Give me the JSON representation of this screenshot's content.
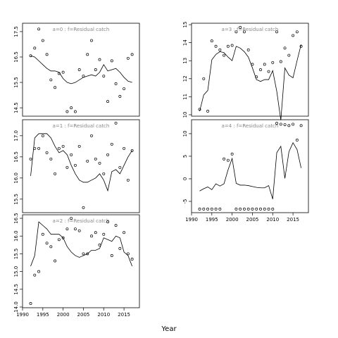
{
  "xlabel": "Year",
  "chart_data": [
    {
      "type": "scatter",
      "title": "a=0 : f=Residual catch",
      "x": [
        1992,
        1993,
        1994,
        1995,
        1996,
        1997,
        1998,
        1999,
        2000,
        2001,
        2002,
        2003,
        2004,
        2005,
        2006,
        2007,
        2008,
        2009,
        2010,
        2011,
        2012,
        2013,
        2014,
        2015,
        2016,
        2017
      ],
      "xlim": [
        1990,
        2018.8
      ],
      "ylim": [
        14.17,
        17.83
      ],
      "yticks": [
        14.5,
        15.5,
        16.5,
        17.5
      ],
      "series": [
        {
          "style": "points",
          "color": "#000000",
          "values": [
            16.55,
            16.85,
            17.6,
            17.15,
            16.6,
            15.6,
            15.3,
            15.85,
            15.9,
            14.35,
            14.5,
            14.35,
            16.0,
            15.75,
            16.6,
            17.15,
            16.0,
            16.4,
            15.75,
            14.75,
            16.35,
            15.45,
            14.95,
            15.25,
            16.45,
            16.6
          ]
        },
        {
          "style": "line",
          "color": "#000000",
          "values": [
            16.55,
            16.5,
            16.35,
            16.2,
            16.05,
            15.95,
            15.95,
            15.9,
            15.65,
            15.5,
            15.45,
            15.5,
            15.6,
            15.7,
            15.75,
            15.8,
            15.75,
            15.9,
            16.2,
            15.95,
            16.0,
            16.05,
            15.9,
            15.7,
            15.55,
            15.5
          ]
        }
      ]
    },
    {
      "type": "scatter",
      "title": "a=1 : f=Residual catch",
      "x": [
        1992,
        1993,
        1994,
        1995,
        1996,
        1997,
        1998,
        1999,
        2000,
        2001,
        2002,
        2003,
        2004,
        2005,
        2006,
        2007,
        2008,
        2009,
        2010,
        2011,
        2012,
        2013,
        2014,
        2015,
        2016,
        2017
      ],
      "xlim": [
        1990,
        2018.8
      ],
      "ylim": [
        15.18,
        17.38
      ],
      "yticks": [
        {
          "value": 15.5,
          "label": "15.5"
        },
        {
          "value": 16,
          "label": "16.0"
        },
        {
          "value": 16.5,
          "label": "16.5"
        },
        {
          "value": 17,
          "label": "17.0"
        }
      ],
      "series": [
        {
          "style": "points",
          "color": "#000000",
          "values": [
            16.45,
            16.7,
            16.7,
            17.0,
            16.6,
            16.45,
            16.1,
            16.7,
            16.75,
            16.25,
            16.55,
            16.3,
            16.75,
            15.3,
            16.4,
            17.0,
            16.45,
            16.35,
            16.1,
            16.55,
            16.8,
            17.3,
            16.25,
            16.7,
            15.95,
            16.65
          ]
        },
        {
          "style": "line",
          "color": "#000000",
          "values": [
            16.05,
            16.95,
            17.05,
            17.05,
            17.05,
            16.95,
            16.75,
            16.6,
            16.65,
            16.55,
            16.3,
            16.1,
            15.95,
            15.9,
            15.9,
            15.95,
            16.0,
            16.1,
            15.95,
            15.7,
            16.15,
            16.2,
            16.1,
            16.3,
            16.5,
            16.65
          ]
        }
      ]
    },
    {
      "type": "scatter",
      "title": "a=2 : f=Residual catch",
      "x": [
        1992,
        1993,
        1994,
        1995,
        1996,
        1997,
        1998,
        1999,
        2000,
        2001,
        2002,
        2003,
        2004,
        2005,
        2006,
        2007,
        2008,
        2009,
        2010,
        2011,
        2012,
        2013,
        2014,
        2015,
        2016,
        2017
      ],
      "xlim": [
        1990,
        2018.8
      ],
      "ylim": [
        13.98,
        16.6
      ],
      "yticks": [
        {
          "value": 14,
          "label": "14.0"
        },
        14.5,
        {
          "value": 15,
          "label": "15.0"
        },
        15.5,
        {
          "value": 16,
          "label": "16.0"
        },
        16.5
      ],
      "xticks": [
        1990,
        1995,
        2000,
        2005,
        2010,
        2015
      ],
      "series": [
        {
          "style": "points",
          "color": "#000000",
          "values": [
            14.1,
            14.9,
            15.0,
            16.05,
            15.8,
            15.7,
            15.3,
            15.9,
            15.95,
            16.2,
            16.5,
            16.2,
            16.15,
            15.5,
            15.5,
            16.0,
            16.1,
            15.75,
            16.05,
            16.4,
            15.45,
            16.3,
            15.65,
            16.1,
            15.5,
            15.35
          ]
        },
        {
          "style": "line",
          "color": "#000000",
          "values": [
            15.15,
            15.45,
            16.4,
            16.3,
            16.2,
            16.05,
            16.05,
            16.05,
            15.95,
            15.7,
            15.55,
            15.45,
            15.4,
            15.45,
            15.5,
            15.6,
            15.6,
            15.65,
            15.95,
            15.9,
            15.85,
            16.0,
            15.95,
            15.55,
            15.45,
            15.15
          ]
        }
      ]
    },
    {
      "type": "scatter",
      "title": "a=3 : f=Residual catch",
      "x": [
        1992,
        1993,
        1994,
        1995,
        1996,
        1997,
        1998,
        1999,
        2000,
        2001,
        2002,
        2003,
        2004,
        2005,
        2006,
        2007,
        2008,
        2009,
        2010,
        2011,
        2012,
        2013,
        2014,
        2015,
        2016,
        2017
      ],
      "xlim": [
        1990,
        2018.8
      ],
      "ylim": [
        9.92,
        15.08
      ],
      "yticks": [
        10,
        11,
        12,
        13,
        14,
        15
      ],
      "series": [
        {
          "style": "points",
          "color": "#000000",
          "values": [
            10.3,
            12.0,
            10.2,
            14.1,
            13.8,
            13.6,
            13.3,
            13.8,
            13.85,
            14.6,
            14.85,
            14.6,
            13.6,
            12.8,
            12.1,
            12.5,
            12.8,
            12.4,
            12.9,
            14.6,
            12.95,
            13.7,
            13.3,
            14.4,
            14.6,
            13.8
          ]
        },
        {
          "style": "line",
          "color": "#000000",
          "values": [
            10.2,
            11.1,
            11.35,
            13.05,
            13.35,
            13.5,
            13.45,
            13.2,
            13.0,
            13.8,
            13.7,
            13.5,
            13.2,
            12.6,
            11.95,
            11.85,
            11.95,
            11.95,
            12.45,
            11.3,
            9.7,
            12.6,
            12.2,
            12.05,
            13.0,
            13.9
          ]
        }
      ]
    },
    {
      "type": "scatter",
      "title": "a=4 : f=Residual catch",
      "x": [
        1992,
        1993,
        1994,
        1995,
        1996,
        1997,
        1998,
        1999,
        2000,
        2001,
        2002,
        2003,
        2004,
        2005,
        2006,
        2007,
        2008,
        2009,
        2010,
        2011,
        2012,
        2013,
        2014,
        2015,
        2016,
        2017
      ],
      "xlim": [
        1990,
        2018.8
      ],
      "ylim": [
        -7.5,
        13.1
      ],
      "yticks": [
        -5,
        0,
        5,
        10
      ],
      "xticks": [
        1990,
        1995,
        2000,
        2005,
        2010,
        2015
      ],
      "series": [
        {
          "style": "points",
          "color": "#000000",
          "values": [
            -6.7,
            -6.7,
            -6.7,
            -6.7,
            -6.7,
            -6.7,
            4.4,
            4.1,
            5.5,
            -6.7,
            -6.7,
            -6.7,
            -6.7,
            -6.7,
            -6.7,
            -6.7,
            -6.7,
            -6.7,
            -6.7,
            12.3,
            12.1,
            12.0,
            11.8,
            12.1,
            8.6,
            11.8
          ]
        },
        {
          "style": "line",
          "color": "#000000",
          "values": [
            -2.7,
            -2.2,
            -1.8,
            -2.4,
            -1.1,
            -1.6,
            -1.1,
            2.0,
            4.5,
            -1.0,
            -1.4,
            -1.4,
            -1.5,
            -1.7,
            -1.9,
            -2.0,
            -2.0,
            -1.5,
            -4.5,
            5.8,
            7.2,
            0.1,
            6.0,
            8.0,
            6.5,
            2.4
          ]
        }
      ]
    }
  ]
}
